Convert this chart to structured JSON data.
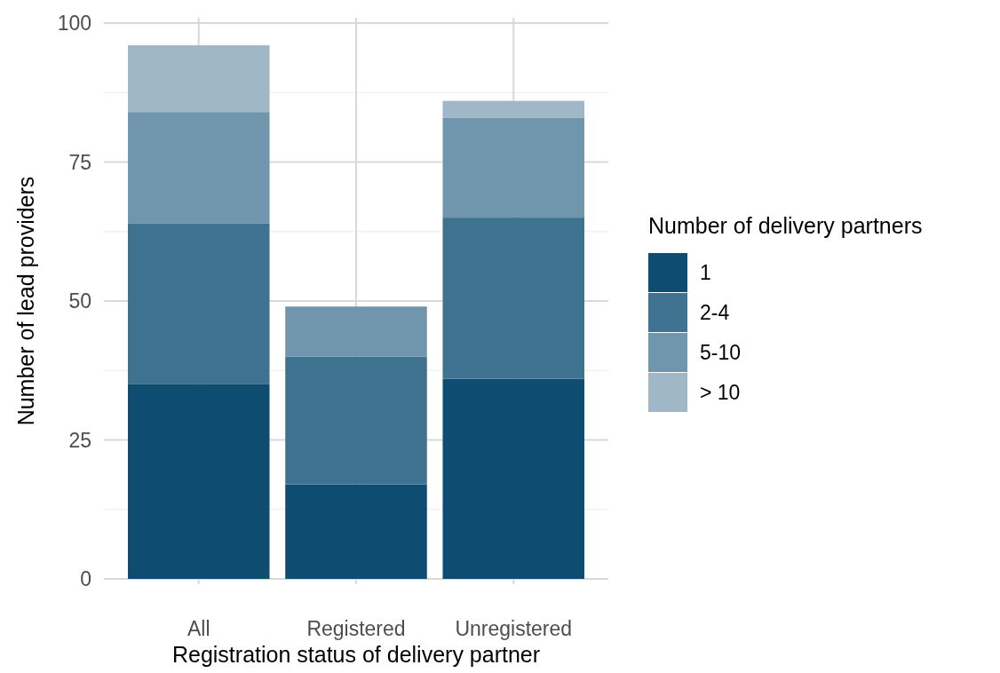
{
  "chart_data": {
    "type": "bar",
    "stacked": true,
    "xlabel": "Registration status of delivery partner",
    "ylabel": "Number of lead providers",
    "legend_title": "Number of delivery partners",
    "legend": "right",
    "grid": true,
    "categories": [
      "All",
      "Registered",
      "Unregistered"
    ],
    "series": [
      {
        "name": "1",
        "color": "#0f4c72",
        "values": [
          35,
          17,
          36
        ]
      },
      {
        "name": "2-4",
        "color": "#3f7191",
        "values": [
          29,
          23,
          29
        ]
      },
      {
        "name": "5-10",
        "color": "#7096ae",
        "values": [
          20,
          9,
          18
        ]
      },
      {
        "name": "> 10",
        "color": "#a0b7c8",
        "values": [
          12,
          0,
          3
        ]
      }
    ],
    "ylim": [
      0,
      100
    ],
    "yticks": [
      0,
      25,
      50,
      75,
      100
    ]
  }
}
